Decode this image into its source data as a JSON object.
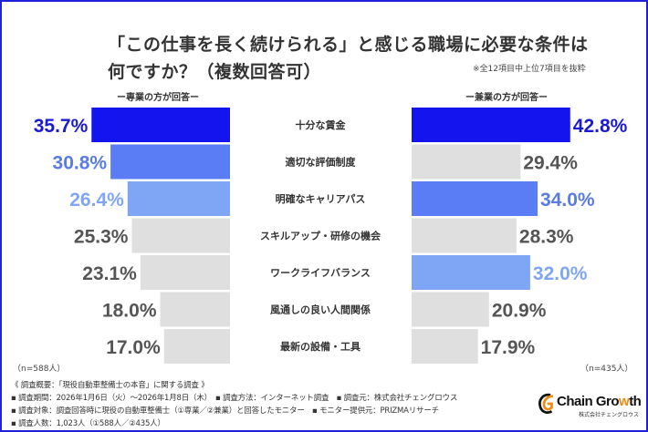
{
  "title_line1": "「この仕事を長く続けられる」と感じる職場に必要な条件は",
  "title_line2": "何ですか？（複数回答可）",
  "note": "※全12項目中上位7項目を抜粋",
  "chart_data": {
    "type": "bar",
    "orientation": "horizontal-butterfly",
    "categories": [
      "十分な賃金",
      "適切な評価制度",
      "明確なキャリアパス",
      "スキルアップ・研修の機会",
      "ワークライフバランス",
      "風通しの良い人間関係",
      "最新の設備・工具"
    ],
    "series": [
      {
        "name": "ー専業の方が回答ー",
        "values": [
          35.7,
          30.8,
          26.4,
          25.3,
          23.1,
          18.0,
          17.0
        ],
        "n_label": "（n=588人）",
        "colors": [
          "#1414ee",
          "#5a7cf5",
          "#7fa6f5",
          "#e0dfe0",
          "#e0dfe0",
          "#e0dfe0",
          "#e0dfe0"
        ]
      },
      {
        "name": "ー兼業の方が回答ー",
        "values": [
          42.8,
          29.4,
          34.0,
          28.3,
          32.0,
          20.9,
          17.9
        ],
        "n_label": "（n=435人）",
        "colors": [
          "#1414ee",
          "#e0dfe0",
          "#5a7cf5",
          "#e0dfe0",
          "#7fa6f5",
          "#e0dfe0",
          "#e0dfe0"
        ]
      }
    ],
    "value_suffix": "%",
    "label_colors": {
      "#1414ee": "#1a1ad0",
      "#5a7cf5": "#5a7ce0",
      "#7fa6f5": "#7fa6f5",
      "#e0dfe0": "#555555"
    }
  },
  "footer": {
    "line1": "《 調査概要：「現役自動車整備士の本音」に関する調査 》",
    "line2": "▪ 調査期間：2026年1月6日（火）～2026年1月8日（木）　▪ 調査方法：インターネット調査　▪ 調査元：株式会社チェングロウス",
    "line3": "▪ 調査対象：調査回答時に現役の自動車整備士（①専業／②兼業）と回答したモニター　▪ モニター提供元：PRIZMAリサーチ",
    "line4": "▪ 調査人数：1,023人（①588人／②435人）"
  },
  "logo": {
    "text_a": "Chain Gro",
    "text_w": "w",
    "text_b": "th",
    "sub": "株式会社チェングロウス"
  },
  "colors": {
    "frame": "#2020d8",
    "accent": "#1414ee",
    "logo_orange": "#f08a10"
  }
}
